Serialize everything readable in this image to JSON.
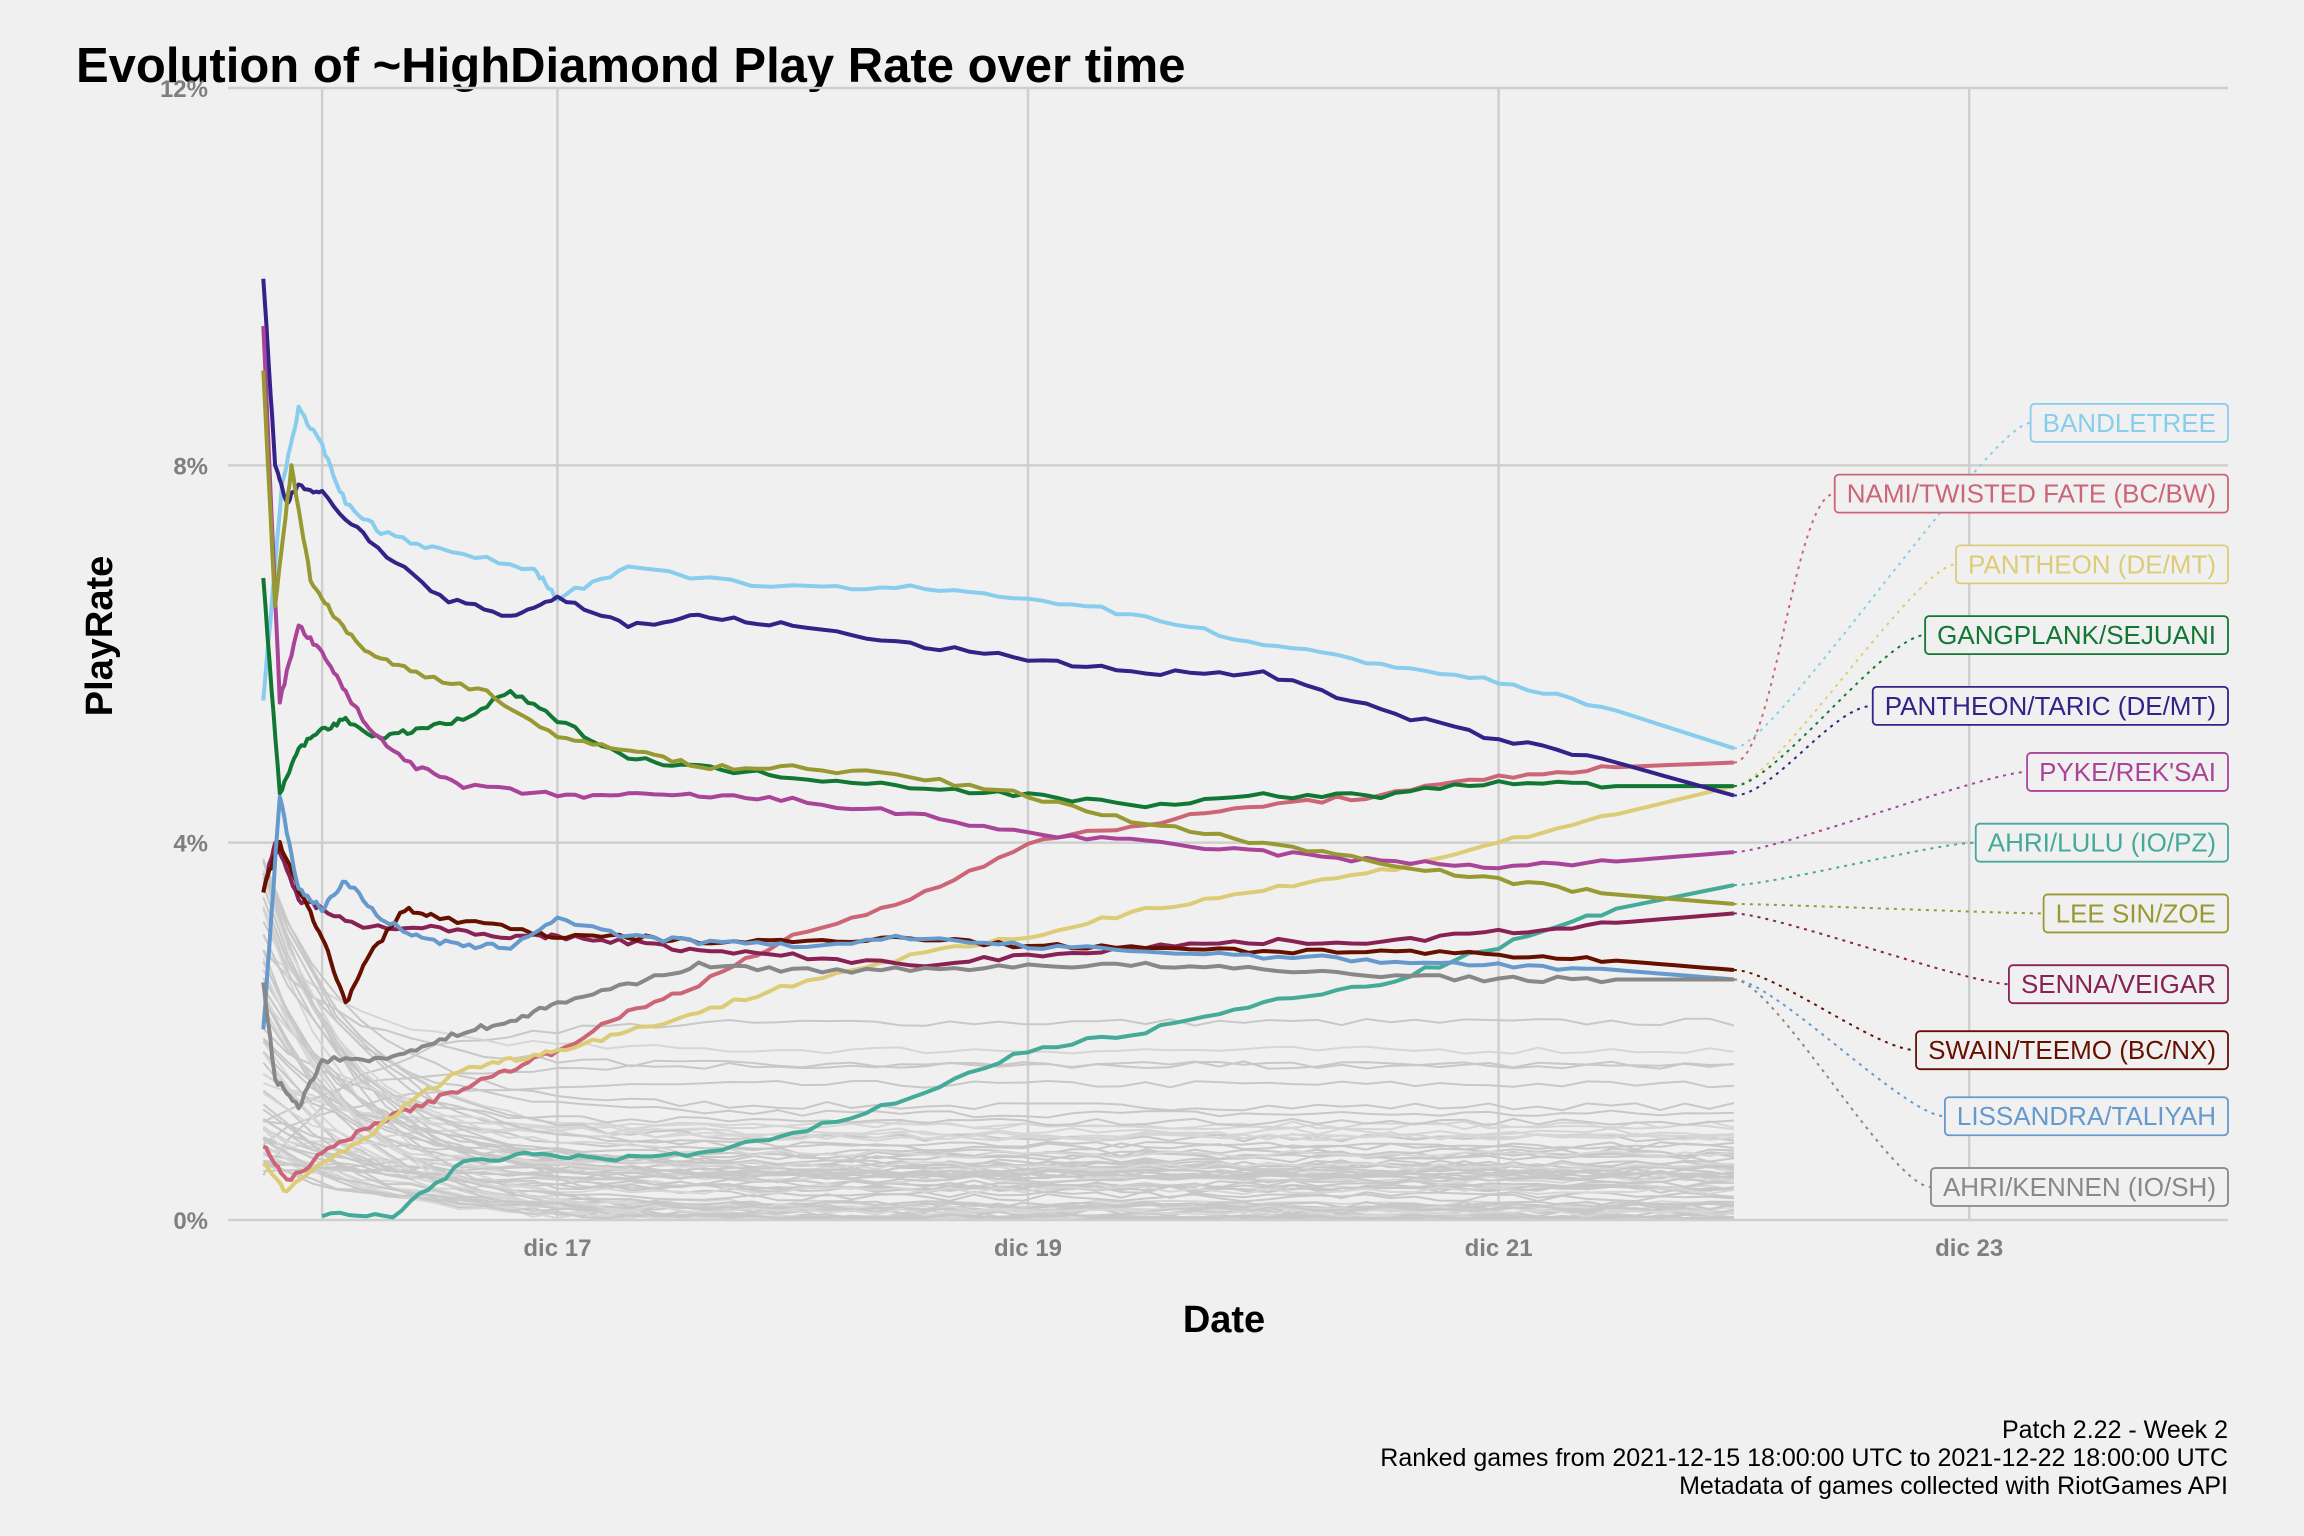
{
  "chart_data": {
    "type": "line",
    "title": "Evolution of ~HighDiamond Play Rate over time",
    "xlabel": "Date",
    "ylabel": "PlayRate",
    "x_ticks": [
      {
        "x": 17.0,
        "label": "dic 17"
      },
      {
        "x": 19.0,
        "label": "dic 19"
      },
      {
        "x": 21.0,
        "label": "dic 21"
      },
      {
        "x": 23.0,
        "label": "dic 23"
      }
    ],
    "y_ticks": [
      {
        "y": 0,
        "label": "0%"
      },
      {
        "y": 4,
        "label": "4%"
      },
      {
        "y": 8,
        "label": "8%"
      },
      {
        "y": 12,
        "label": "12%"
      }
    ],
    "xlim": [
      15.6,
      24.1
    ],
    "ylim": [
      0,
      12
    ],
    "grid": true,
    "legend": "direct labels at right",
    "caption": [
      "Patch 2.22 - Week 2",
      "Ranked games from 2021-12-15 18:00:00 UTC to 2021-12-22 18:00:00 UTC",
      "Metadata of games collected with RiotGames API"
    ],
    "series": [
      {
        "name": "BANDLETREE",
        "color": "#88cdee",
        "label_y": 8.45,
        "x": [
          15.75,
          15.83,
          15.9,
          16.0,
          16.1,
          16.25,
          16.5,
          16.9,
          17.0,
          17.3,
          18.0,
          18.5,
          19.0,
          19.5,
          20.0,
          20.5,
          21.0,
          21.5,
          22.0
        ],
        "y": [
          5.5,
          7.8,
          8.6,
          8.2,
          7.6,
          7.3,
          7.1,
          6.9,
          6.6,
          6.9,
          6.7,
          6.7,
          6.6,
          6.4,
          6.1,
          5.9,
          5.7,
          5.4,
          5.0
        ]
      },
      {
        "name": "NAMI/TWISTED FATE (BC/BW)",
        "color": "#cc6677",
        "label_y": 7.7,
        "x": [
          15.75,
          15.85,
          16.0,
          16.2,
          16.4,
          16.6,
          16.8,
          17.0,
          17.3,
          17.6,
          18.0,
          18.5,
          19.0,
          19.5,
          20.0,
          20.5,
          21.0,
          21.5,
          22.0
        ],
        "y": [
          0.8,
          0.4,
          0.7,
          1.0,
          1.2,
          1.4,
          1.6,
          1.8,
          2.2,
          2.5,
          3.0,
          3.4,
          4.0,
          4.2,
          4.4,
          4.5,
          4.7,
          4.8,
          4.85
        ]
      },
      {
        "name": "PANTHEON (DE/MT)",
        "color": "#ddcc77",
        "label_y": 6.95,
        "x": [
          15.75,
          15.85,
          16.0,
          16.2,
          16.4,
          16.6,
          16.8,
          17.0,
          17.3,
          17.6,
          18.0,
          18.5,
          19.0,
          19.5,
          20.0,
          20.5,
          21.0,
          21.5,
          22.0
        ],
        "y": [
          0.6,
          0.3,
          0.6,
          0.9,
          1.3,
          1.6,
          1.7,
          1.8,
          2.0,
          2.2,
          2.5,
          2.8,
          3.0,
          3.3,
          3.5,
          3.7,
          4.0,
          4.3,
          4.6
        ]
      },
      {
        "name": "GANGPLANK/SEJUANI",
        "color": "#117733",
        "label_y": 6.2,
        "x": [
          15.75,
          15.82,
          15.9,
          16.0,
          16.1,
          16.25,
          16.4,
          16.6,
          16.8,
          17.0,
          17.3,
          17.6,
          18.0,
          18.5,
          19.0,
          19.5,
          20.0,
          20.5,
          21.0,
          21.5,
          22.0
        ],
        "y": [
          6.8,
          4.5,
          5.0,
          5.2,
          5.3,
          5.1,
          5.2,
          5.3,
          5.6,
          5.3,
          4.9,
          4.8,
          4.7,
          4.6,
          4.5,
          4.4,
          4.5,
          4.5,
          4.65,
          4.6,
          4.6
        ]
      },
      {
        "name": "PANTHEON/TARIC (DE/MT)",
        "color": "#332288",
        "label_y": 5.45,
        "x": [
          15.75,
          15.8,
          15.85,
          15.9,
          16.0,
          16.2,
          16.5,
          16.8,
          17.0,
          17.3,
          17.6,
          18.0,
          18.5,
          19.0,
          19.5,
          20.0,
          20.5,
          21.0,
          21.5,
          22.0
        ],
        "y": [
          10.0,
          8.0,
          7.6,
          7.8,
          7.7,
          7.2,
          6.6,
          6.4,
          6.6,
          6.3,
          6.4,
          6.3,
          6.1,
          5.95,
          5.8,
          5.8,
          5.4,
          5.1,
          4.85,
          4.5
        ]
      },
      {
        "name": "PYKE/REK'SAI",
        "color": "#aa4499",
        "label_y": 4.75,
        "x": [
          15.75,
          15.82,
          15.9,
          16.0,
          16.1,
          16.2,
          16.4,
          16.6,
          17.0,
          17.3,
          17.6,
          18.0,
          18.5,
          19.0,
          19.5,
          20.0,
          20.5,
          21.0,
          21.5,
          22.0
        ],
        "y": [
          9.5,
          5.5,
          6.3,
          6.0,
          5.6,
          5.2,
          4.8,
          4.6,
          4.5,
          4.5,
          4.5,
          4.45,
          4.3,
          4.1,
          4.0,
          3.9,
          3.8,
          3.75,
          3.8,
          3.9
        ]
      },
      {
        "name": "AHRI/LULU (IO/PZ)",
        "color": "#44aa99",
        "label_y": 4.0,
        "x": [
          16.0,
          16.3,
          16.6,
          16.9,
          17.2,
          17.6,
          18.0,
          18.5,
          19.0,
          19.5,
          20.0,
          20.5,
          21.0,
          21.5,
          22.0
        ],
        "y": [
          0.05,
          0.05,
          0.6,
          0.7,
          0.65,
          0.7,
          0.9,
          1.3,
          1.8,
          2.0,
          2.3,
          2.5,
          2.9,
          3.3,
          3.55
        ]
      },
      {
        "name": "LEE SIN/ZOE",
        "color": "#999933",
        "label_y": 3.25,
        "x": [
          15.75,
          15.8,
          15.87,
          15.95,
          16.05,
          16.2,
          16.4,
          16.7,
          17.0,
          17.3,
          17.6,
          18.0,
          18.5,
          19.0,
          19.5,
          20.0,
          20.5,
          21.0,
          21.5,
          22.0
        ],
        "y": [
          9.0,
          6.5,
          8.0,
          6.8,
          6.4,
          6.0,
          5.8,
          5.6,
          5.1,
          5.0,
          4.8,
          4.8,
          4.7,
          4.5,
          4.2,
          4.0,
          3.8,
          3.6,
          3.45,
          3.35
        ]
      },
      {
        "name": "SENNA/VEIGAR",
        "color": "#882255",
        "label_y": 2.5,
        "x": [
          15.75,
          15.8,
          15.9,
          16.0,
          16.2,
          16.5,
          16.8,
          17.0,
          17.3,
          17.6,
          18.0,
          18.5,
          19.0,
          19.5,
          20.0,
          20.5,
          21.0,
          21.5,
          22.0
        ],
        "y": [
          3.5,
          4.0,
          3.4,
          3.3,
          3.1,
          3.1,
          3.0,
          3.0,
          2.95,
          2.85,
          2.8,
          2.7,
          2.8,
          2.9,
          2.95,
          2.95,
          3.05,
          3.15,
          3.25
        ]
      },
      {
        "name": "SWAIN/TEEMO (BC/NX)",
        "color": "#661100",
        "label_y": 1.8,
        "x": [
          15.75,
          15.82,
          15.9,
          16.0,
          16.1,
          16.2,
          16.35,
          16.5,
          16.8,
          17.0,
          17.3,
          17.6,
          18.0,
          18.5,
          19.0,
          19.5,
          20.0,
          20.5,
          21.0,
          21.5,
          22.0
        ],
        "y": [
          3.5,
          4.0,
          3.5,
          3.0,
          2.3,
          2.8,
          3.3,
          3.2,
          3.1,
          3.0,
          3.0,
          2.95,
          2.95,
          3.0,
          2.9,
          2.9,
          2.85,
          2.85,
          2.8,
          2.75,
          2.65
        ]
      },
      {
        "name": "LISSANDRA/TALIYAH",
        "color": "#6699cc",
        "label_y": 1.1,
        "x": [
          15.75,
          15.82,
          15.9,
          16.0,
          16.1,
          16.25,
          16.4,
          16.6,
          16.8,
          17.0,
          17.3,
          17.6,
          18.0,
          18.5,
          19.0,
          19.5,
          20.0,
          20.5,
          21.0,
          21.5,
          22.0
        ],
        "y": [
          2.0,
          4.5,
          3.5,
          3.3,
          3.6,
          3.2,
          3.0,
          2.9,
          2.9,
          3.2,
          3.0,
          2.95,
          2.9,
          3.0,
          2.9,
          2.85,
          2.8,
          2.75,
          2.7,
          2.65,
          2.55
        ]
      },
      {
        "name": "AHRI/KENNEN (IO/SH)",
        "color": "#888888",
        "label_y": 0.35,
        "x": [
          15.75,
          15.8,
          15.9,
          16.0,
          16.2,
          16.4,
          16.6,
          16.8,
          17.0,
          17.3,
          17.6,
          18.0,
          18.5,
          19.0,
          19.5,
          20.0,
          20.5,
          21.0,
          21.5,
          22.0
        ],
        "y": [
          2.5,
          1.5,
          1.2,
          1.7,
          1.7,
          1.8,
          2.0,
          2.1,
          2.3,
          2.5,
          2.7,
          2.65,
          2.65,
          2.7,
          2.7,
          2.65,
          2.6,
          2.55,
          2.55,
          2.55
        ]
      }
    ]
  }
}
